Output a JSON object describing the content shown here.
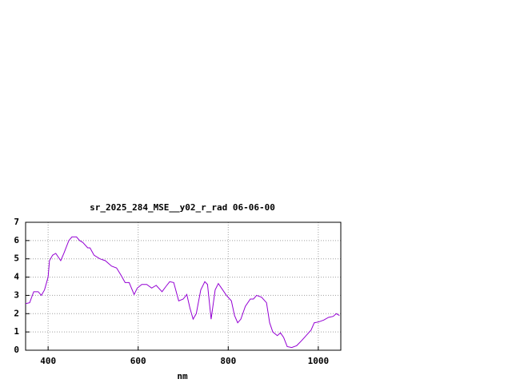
{
  "chart_data": {
    "type": "line",
    "title": "sr_2025_284_MSE__y02_r_rad 06-06-00",
    "x_label": "nm",
    "x": [
      350,
      359,
      368,
      378,
      385,
      392,
      400,
      403,
      410,
      417,
      428,
      435,
      446,
      453,
      463,
      470,
      477,
      488,
      493,
      502,
      515,
      527,
      541,
      552,
      562,
      571,
      580,
      591,
      598,
      608,
      619,
      630,
      640,
      653,
      662,
      670,
      679,
      690,
      700,
      708,
      715,
      722,
      729,
      739,
      748,
      754,
      762,
      771,
      778,
      785,
      796,
      807,
      814,
      821,
      828,
      838,
      849,
      856,
      863,
      874,
      885,
      892,
      899,
      909,
      916,
      923,
      931,
      941,
      952,
      962,
      973,
      984,
      991,
      1001,
      1012,
      1023,
      1033,
      1040,
      1047
    ],
    "series": [
      {
        "name": "sr_2025_284_MSE__y02_r_rad 06-06-00",
        "color": "#9400d3",
        "values": [
          2.55,
          2.6,
          3.2,
          3.2,
          3.0,
          3.3,
          4.0,
          4.9,
          5.2,
          5.3,
          4.9,
          5.3,
          6.0,
          6.2,
          6.2,
          6.0,
          5.9,
          5.6,
          5.6,
          5.2,
          5.0,
          4.9,
          4.6,
          4.5,
          4.1,
          3.7,
          3.7,
          3.05,
          3.4,
          3.6,
          3.6,
          3.4,
          3.55,
          3.2,
          3.5,
          3.75,
          3.7,
          2.7,
          2.8,
          3.05,
          2.3,
          1.7,
          2.0,
          3.3,
          3.75,
          3.6,
          1.7,
          3.3,
          3.65,
          3.4,
          3.0,
          2.7,
          1.9,
          1.5,
          1.7,
          2.4,
          2.8,
          2.8,
          3.0,
          2.9,
          2.6,
          1.5,
          1.0,
          0.8,
          0.95,
          0.7,
          0.2,
          0.15,
          0.25,
          0.5,
          0.8,
          1.1,
          1.5,
          1.55,
          1.65,
          1.8,
          1.85,
          2.0,
          1.9
        ]
      }
    ],
    "xlim": [
      350,
      1050
    ],
    "ylim": [
      0,
      7
    ],
    "xticks": [
      400,
      600,
      800,
      1000
    ],
    "yticks": [
      0,
      1,
      2,
      3,
      4,
      5,
      6,
      7
    ],
    "grid": true
  }
}
